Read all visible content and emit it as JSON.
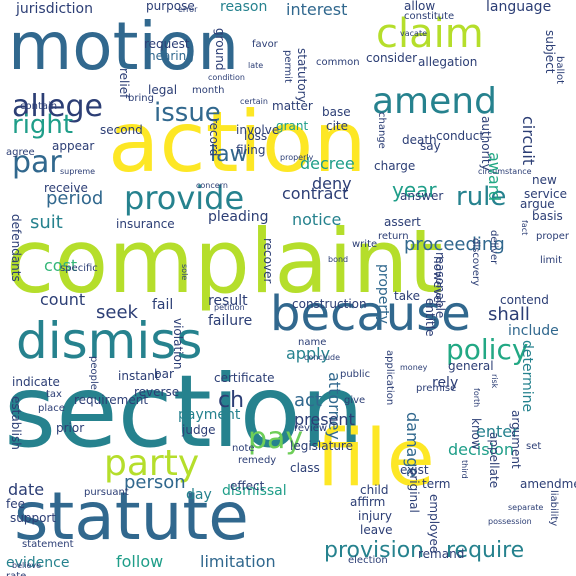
{
  "palette": {
    "purple": "#440154",
    "indigo": "#3b528b",
    "blue": "#31688e",
    "teal": "#26828e",
    "aqua": "#1f9e89",
    "green": "#35b779",
    "lime": "#6ece58",
    "yellowgreen": "#b5de2b",
    "yellow": "#fde725",
    "navy": "#2c3e75",
    "seagreen": "#22a884"
  },
  "words": [
    "section",
    "complaint",
    "action",
    "file",
    "statute",
    "motion",
    "dismiss",
    "because",
    "amend",
    "claim",
    "party",
    "provide",
    "allege",
    "policy",
    "rule",
    "issue",
    "right",
    "par",
    "law",
    "period",
    "pay",
    "require",
    "provision",
    "limitation",
    "person",
    "contract",
    "notice",
    "year",
    "suit",
    "proceeding",
    "cost",
    "damage",
    "attorney",
    "count",
    "seek",
    "shall",
    "apply",
    "act",
    "present",
    "date",
    "enter",
    "decision",
    "decree",
    "deny",
    "award",
    "circuit",
    "interest",
    "reason",
    "jurisdiction",
    "language",
    "request",
    "hearing",
    "insurance",
    "pleading",
    "recover",
    "result",
    "fail",
    "failure",
    "evidence",
    "follow",
    "day",
    "dismissal",
    "payment",
    "judge",
    "include",
    "contend",
    "determine",
    "rely",
    "property",
    "matter",
    "grant",
    "statutory",
    "permit",
    "common",
    "consider",
    "allegation",
    "second",
    "appear",
    "involve",
    "death",
    "conduct",
    "base",
    "cite",
    "certificate",
    "violation",
    "bar",
    "instant",
    "general",
    "reverse",
    "prior",
    "fee",
    "support",
    "establish",
    "tax",
    "place",
    "requirement",
    "legislature",
    "affirm",
    "injury",
    "leave",
    "class",
    "child",
    "remand",
    "election",
    "amendment",
    "liability",
    "argument",
    "appellate",
    "know",
    "term",
    "exist",
    "original",
    "employee",
    "construction",
    "take",
    "entitle",
    "reasonable",
    "however",
    "new",
    "service",
    "argue",
    "basis",
    "proper",
    "limit",
    "indicate",
    "purpose",
    "error",
    "allow",
    "constitute",
    "subject",
    "ballot",
    "authority",
    "say",
    "charge",
    "change",
    "properly",
    "supreme",
    "receive",
    "agree",
    "contain",
    "bring",
    "legal",
    "relief",
    "month",
    "record",
    "loss",
    "filing",
    "answer",
    "assert",
    "write",
    "return",
    "defendants",
    "specific",
    "effect",
    "rate",
    "statement",
    "remedy",
    "note",
    "review",
    "public",
    "name",
    "money",
    "premise",
    "application",
    "people",
    "pursuant",
    "deliver",
    "discovery",
    "ch",
    "ground",
    "favor",
    "vacate",
    "condition",
    "certain",
    "late",
    "bond",
    "separate",
    "possession",
    "concern",
    "circumstance",
    "fact",
    "sole",
    "give",
    "believe",
    "third",
    "forth",
    "risk",
    "petition",
    "conclude",
    "set"
  ]
}
